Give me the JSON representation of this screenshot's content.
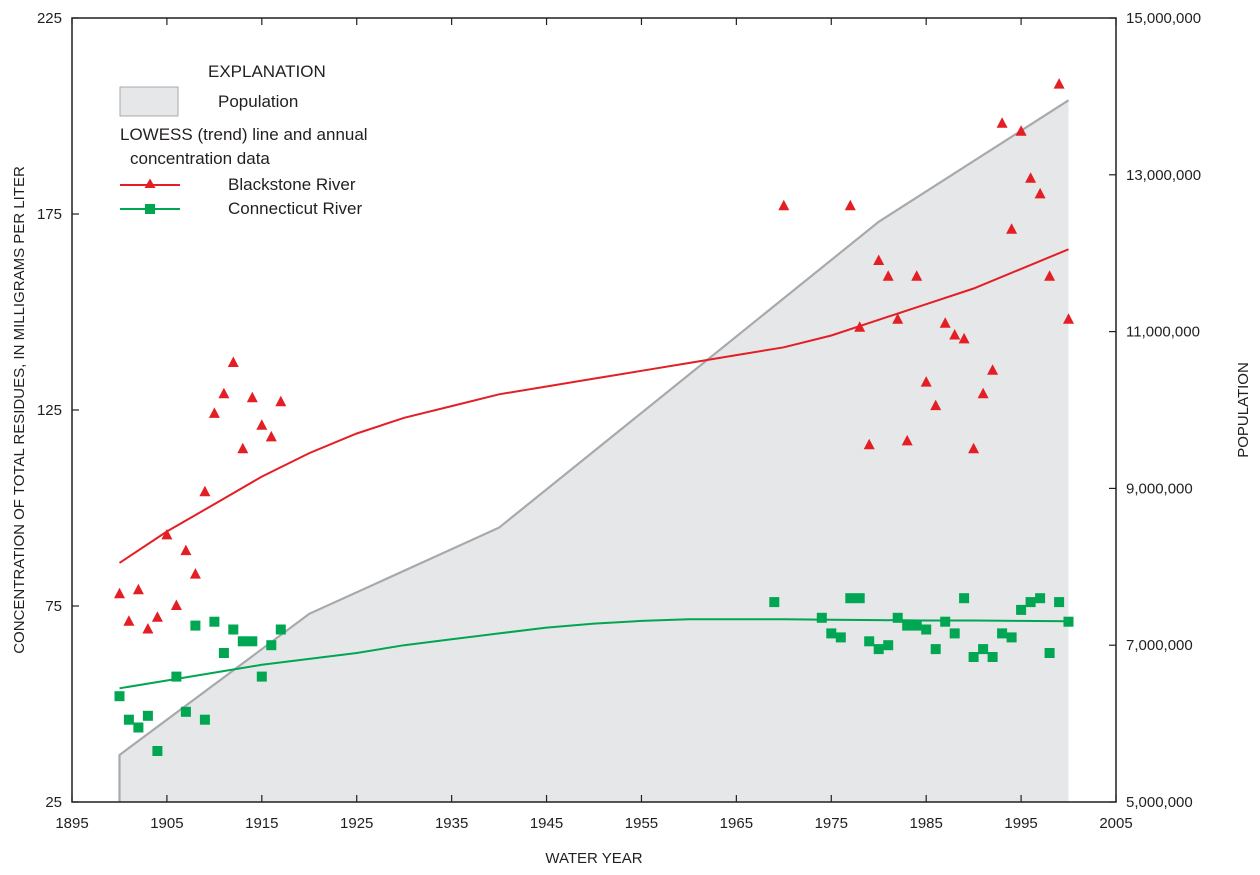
{
  "chart_data": {
    "type": "line",
    "xlabel": "WATER YEAR",
    "ylabel": "CONCENTRATION OF TOTAL RESIDUES, IN MILLIGRAMS PER LITER",
    "y2label": "POPULATION",
    "xlim": [
      1895,
      2005
    ],
    "ylim": [
      25,
      225
    ],
    "y2lim": [
      5000000,
      15000000
    ],
    "x_ticks": [
      1895,
      1905,
      1915,
      1925,
      1935,
      1945,
      1955,
      1965,
      1975,
      1985,
      1995,
      2005
    ],
    "x_tick_labels": [
      "1895",
      "1905",
      "1915",
      "1925",
      "1935",
      "1945",
      "1955",
      "1965",
      "1975",
      "1985",
      "1995",
      "2005"
    ],
    "y_ticks": [
      25,
      75,
      125,
      175,
      225
    ],
    "y_tick_labels": [
      "25",
      "75",
      "125",
      "175",
      "225"
    ],
    "y2_ticks": [
      5000000,
      7000000,
      9000000,
      11000000,
      13000000,
      15000000
    ],
    "y2_tick_labels": [
      "5,000,000",
      "7,000,000",
      "9,000,000",
      "11,000,000",
      "13,000,000",
      "15,000,000"
    ],
    "grid": false,
    "legend": {
      "title": "EXPLANATION",
      "population_label": "Population",
      "trend_heading_line1": "LOWESS (trend) line and annual",
      "trend_heading_line2": "concentration data",
      "placement": "top-left"
    },
    "population": {
      "name": "Population",
      "type": "area",
      "axis": "right",
      "color": "#e6e7e8",
      "line_color": "#a7a9ac",
      "x": [
        1900,
        1920,
        1940,
        1980,
        2000
      ],
      "y": [
        5600000,
        7400000,
        8500000,
        12400000,
        13950000
      ]
    },
    "series": [
      {
        "name": "Blackstone River",
        "color": "#e31e24",
        "marker": "triangle",
        "trend": {
          "x": [
            1900,
            1905,
            1910,
            1915,
            1920,
            1925,
            1930,
            1935,
            1940,
            1945,
            1950,
            1955,
            1960,
            1965,
            1970,
            1975,
            1980,
            1985,
            1990,
            1995,
            2000
          ],
          "y": [
            86,
            94,
            101,
            108,
            114,
            119,
            123,
            126,
            129,
            131,
            133,
            135,
            137,
            139,
            141,
            144,
            148,
            152,
            156,
            161,
            166
          ]
        },
        "points": {
          "x": [
            1900,
            1901,
            1902,
            1903,
            1904,
            1905,
            1906,
            1907,
            1908,
            1909,
            1910,
            1911,
            1912,
            1913,
            1914,
            1915,
            1916,
            1917,
            1970,
            1977,
            1978,
            1979,
            1980,
            1981,
            1982,
            1983,
            1984,
            1985,
            1986,
            1987,
            1988,
            1989,
            1990,
            1991,
            1992,
            1993,
            1994,
            1995,
            1996,
            1997,
            1998,
            1999,
            2000
          ],
          "y": [
            78,
            71,
            79,
            69,
            72,
            93,
            75,
            89,
            83,
            104,
            124,
            129,
            137,
            115,
            128,
            121,
            118,
            127,
            177,
            177,
            146,
            116,
            163,
            159,
            148,
            117,
            159,
            132,
            126,
            147,
            144,
            143,
            115,
            129,
            135,
            198,
            171,
            196,
            184,
            180,
            159,
            208,
            148
          ]
        }
      },
      {
        "name": "Connecticut River",
        "color": "#00a651",
        "marker": "square",
        "trend": {
          "x": [
            1900,
            1905,
            1910,
            1915,
            1920,
            1925,
            1930,
            1935,
            1940,
            1945,
            1950,
            1955,
            1960,
            1965,
            1970,
            1975,
            1980,
            1985,
            1990,
            1995,
            2000
          ],
          "y": [
            54,
            56,
            58,
            60,
            61.5,
            63,
            65,
            66.5,
            68,
            69.5,
            70.5,
            71.2,
            71.6,
            71.6,
            71.6,
            71.5,
            71.4,
            71.3,
            71.3,
            71.2,
            71.1
          ]
        },
        "points": {
          "x": [
            1900,
            1901,
            1902,
            1903,
            1904,
            1906,
            1907,
            1908,
            1909,
            1910,
            1911,
            1912,
            1913,
            1914,
            1915,
            1916,
            1917,
            1969,
            1974,
            1975,
            1976,
            1977,
            1978,
            1979,
            1980,
            1981,
            1982,
            1983,
            1984,
            1985,
            1986,
            1987,
            1988,
            1989,
            1990,
            1991,
            1992,
            1993,
            1994,
            1995,
            1996,
            1997,
            1998,
            1999,
            2000
          ],
          "y": [
            52,
            46,
            44,
            47,
            38,
            57,
            48,
            70,
            46,
            71,
            63,
            69,
            66,
            66,
            57,
            65,
            69,
            76,
            72,
            68,
            67,
            77,
            77,
            66,
            64,
            65,
            72,
            70,
            70,
            69,
            64,
            71,
            68,
            77,
            62,
            64,
            62,
            68,
            67,
            74,
            76,
            77,
            63,
            76,
            71
          ]
        }
      }
    ]
  }
}
